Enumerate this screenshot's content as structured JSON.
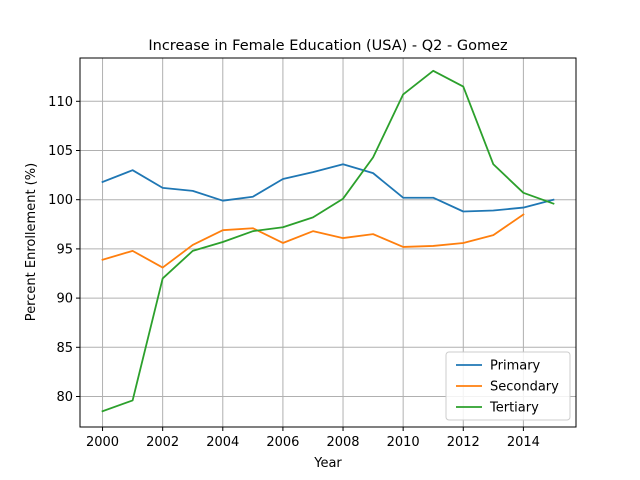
{
  "chart_data": {
    "type": "line",
    "title": "Increase in Female Education (USA) - Q2 - Gomez",
    "xlabel": "Year",
    "ylabel": "Percent Enrollement (%)",
    "x": [
      2000,
      2001,
      2002,
      2003,
      2004,
      2005,
      2006,
      2007,
      2008,
      2009,
      2010,
      2011,
      2012,
      2013,
      2014,
      2015
    ],
    "xlim": [
      1999.25,
      2015.75
    ],
    "ylim": [
      76.9,
      114.4
    ],
    "xticks": [
      "2000",
      "2002",
      "2004",
      "2006",
      "2008",
      "2010",
      "2012",
      "2014"
    ],
    "yticks": [
      "80",
      "85",
      "90",
      "95",
      "100",
      "105",
      "110"
    ],
    "grid": true,
    "legend_position": "lower-right",
    "series": [
      {
        "name": "Primary",
        "color": "#1f77b4",
        "values": [
          101.8,
          103.0,
          101.2,
          100.9,
          99.9,
          100.3,
          102.1,
          102.8,
          103.6,
          102.7,
          100.2,
          100.2,
          98.8,
          98.9,
          99.2,
          100.0
        ]
      },
      {
        "name": "Secondary",
        "color": "#ff7f0e",
        "values": [
          93.9,
          94.8,
          93.1,
          95.4,
          96.9,
          97.1,
          95.6,
          96.8,
          96.1,
          96.5,
          95.2,
          95.3,
          95.6,
          96.4,
          98.5,
          null
        ]
      },
      {
        "name": "Tertiary",
        "color": "#2ca02c",
        "values": [
          78.5,
          79.6,
          92.0,
          94.8,
          95.7,
          96.8,
          97.2,
          98.2,
          100.1,
          104.3,
          110.7,
          113.1,
          111.5,
          103.6,
          100.7,
          99.6
        ]
      }
    ]
  }
}
